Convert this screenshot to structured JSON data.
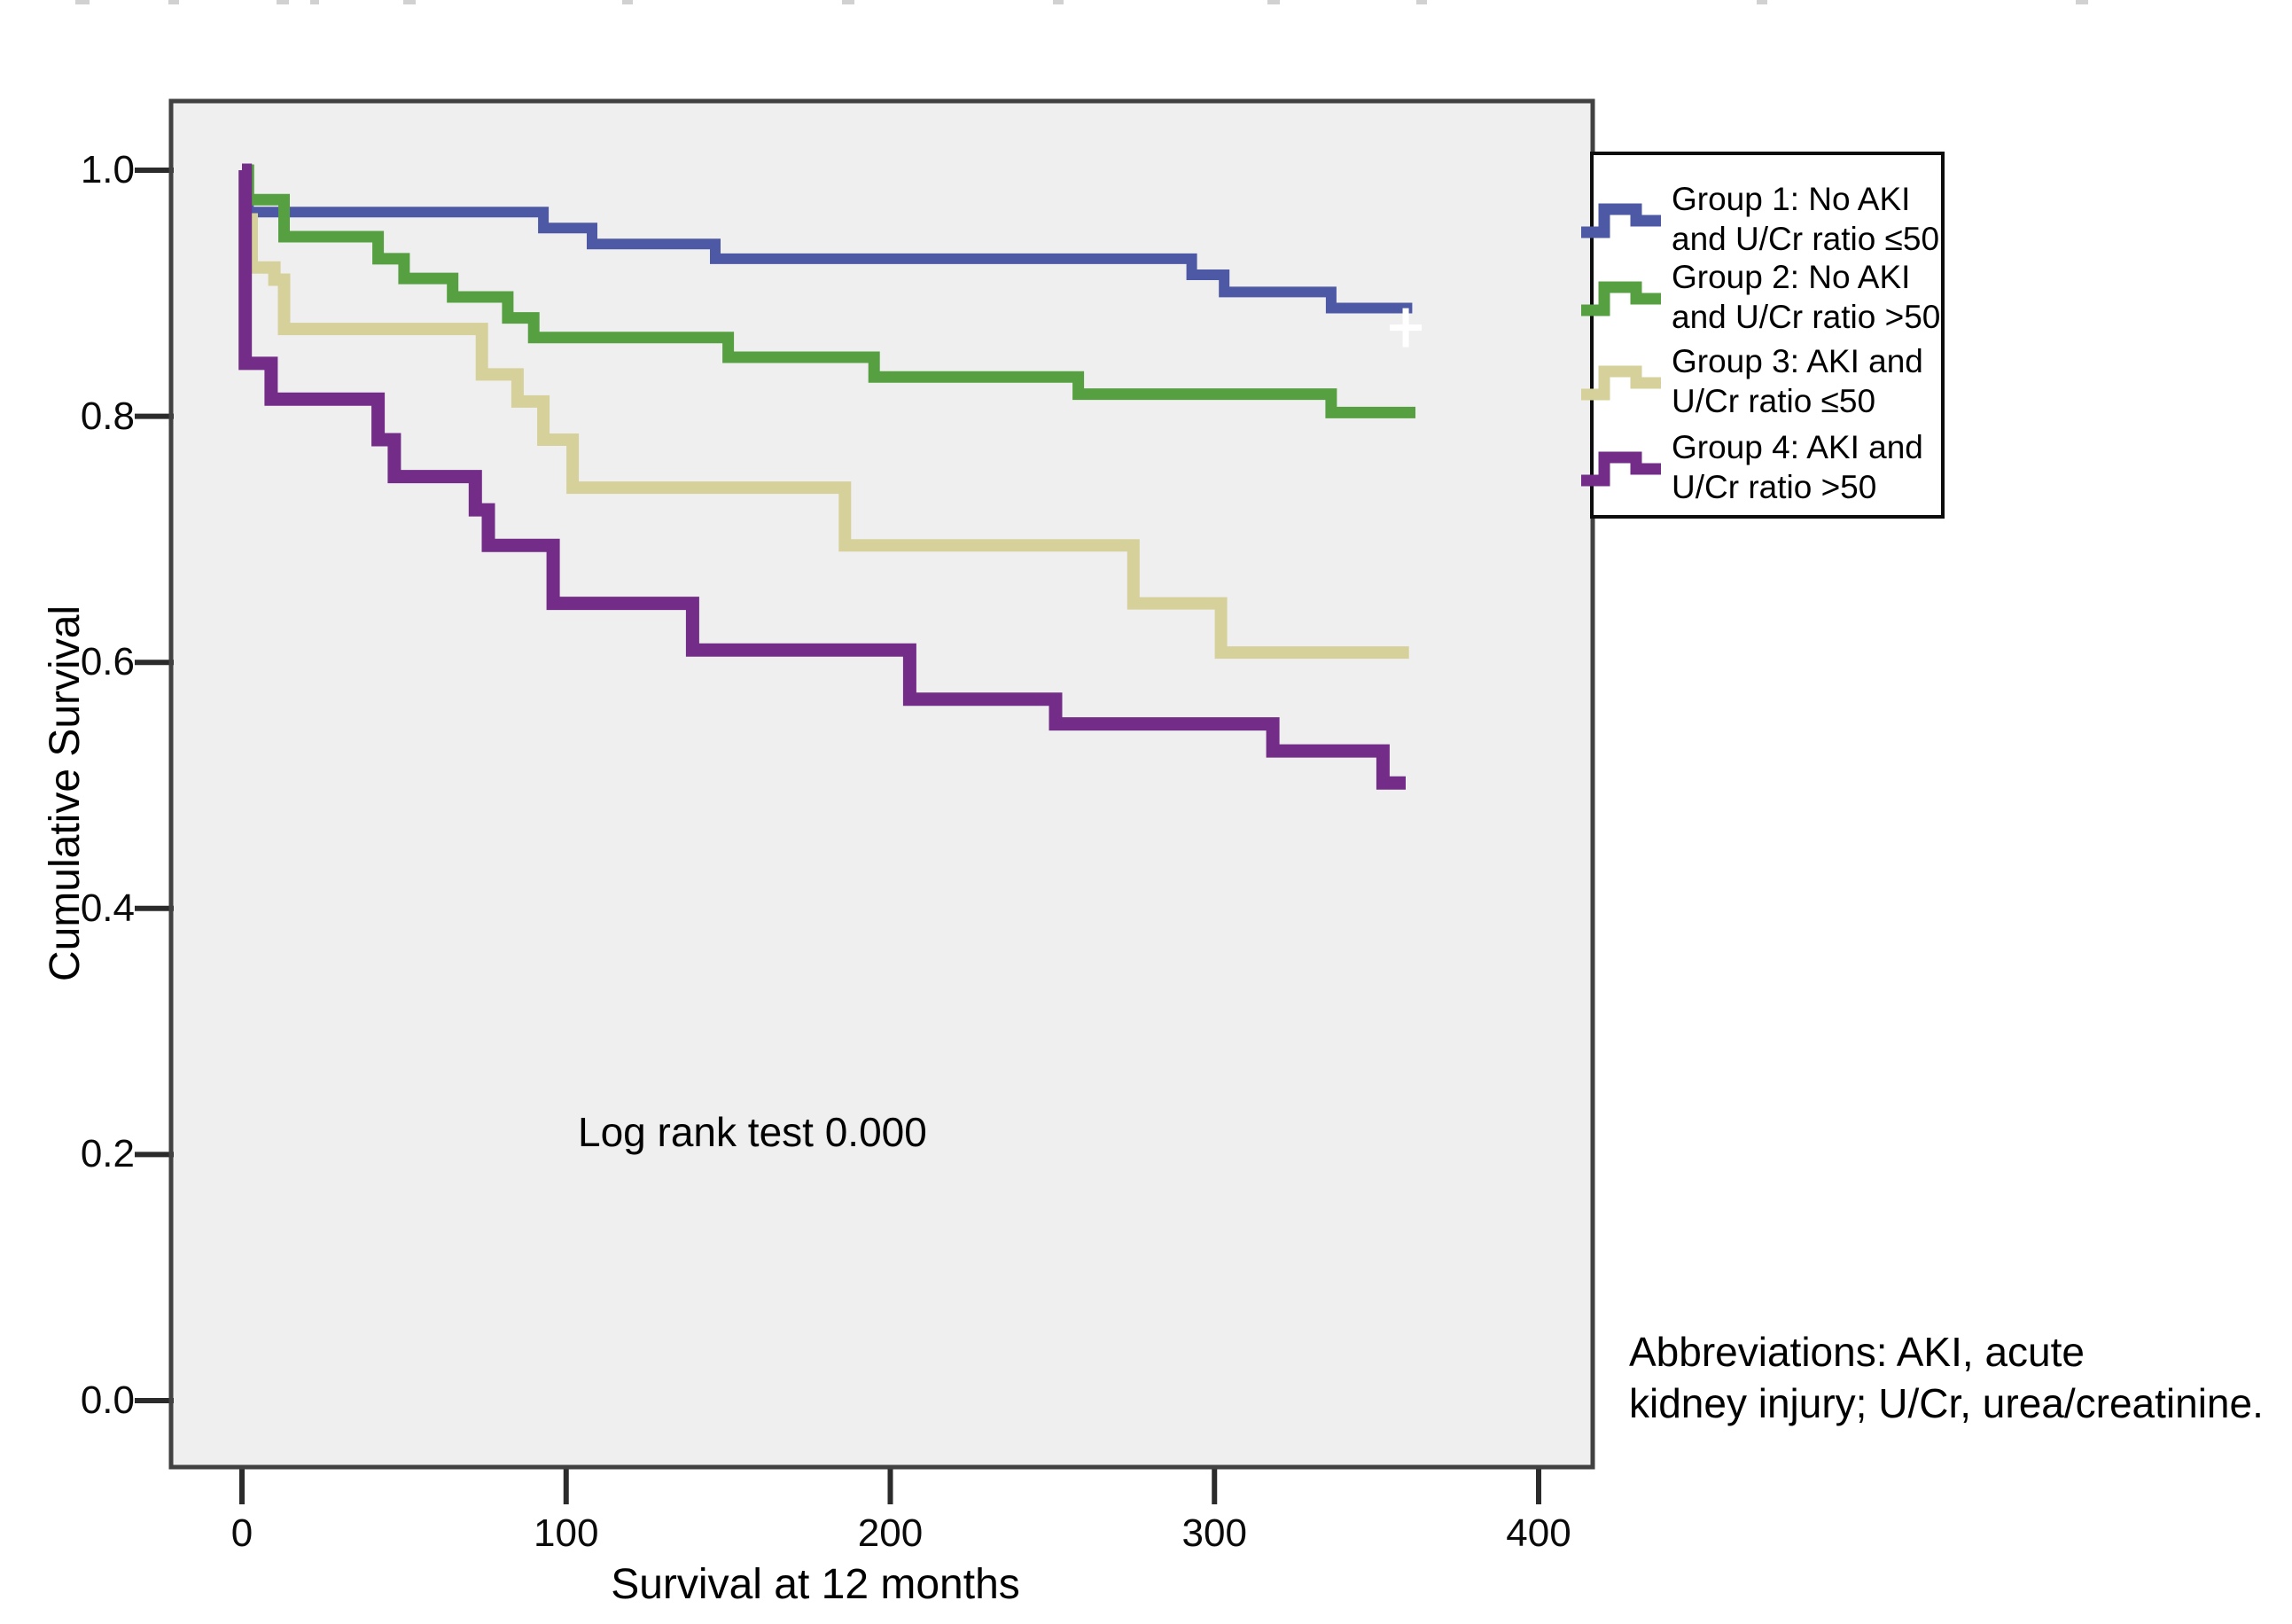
{
  "figure": {
    "annotation": "Log rank test 0.000",
    "abbreviations_line1": "Abbreviations: AKI, acute",
    "abbreviations_line2": "kidney injury; U/Cr, urea/creatinine."
  },
  "axes": {
    "x_label": "Survival at 12 months",
    "y_label": "Cumulative Survival",
    "x_tick_labels": [
      "0",
      "100",
      "200",
      "300",
      "400"
    ],
    "y_tick_labels": [
      "1.0",
      "0.8",
      "0.6",
      "0.4",
      "0.2",
      "0.0"
    ]
  },
  "legend": {
    "items": [
      {
        "line1": "Group 1: No AKI",
        "line2": "and U/Cr ratio ≤50"
      },
      {
        "line1": "Group 2: No AKI",
        "line2": "and U/Cr ratio >50"
      },
      {
        "line1": "Group 3: AKI and",
        "line2": "U/Cr ratio ≤50"
      },
      {
        "line1": "Group 4: AKI and",
        "line2": "U/Cr ratio >50"
      }
    ]
  },
  "colors": {
    "plot_background": "#f0eff0",
    "plot_border": "#414141",
    "tick": "#2b2b2b",
    "censor_mark": "#ffffff"
  },
  "chart_data": {
    "type": "line",
    "subtype": "kaplan-meier-step",
    "title": "",
    "xlabel": "Survival at 12 months",
    "ylabel": "Cumulative Survival",
    "xlim": [
      -22,
      422
    ],
    "ylim": [
      -0.04,
      1.06
    ],
    "x_tick_values": [
      0,
      100,
      200,
      300,
      400
    ],
    "y_tick_values": [
      1.0,
      0.8,
      0.6,
      0.4,
      0.2,
      0.0
    ],
    "grid": false,
    "legend_position": "upper-right-outside",
    "annotation": "Log rank test 0.000",
    "series": [
      {
        "name": "Group 1: No AKI and U/Cr ratio ≤50",
        "color": "#4d59a5",
        "line_width": 12,
        "step_points": [
          [
            0,
            1.0
          ],
          [
            2,
            0.966
          ],
          [
            93,
            0.953
          ],
          [
            108,
            0.94
          ],
          [
            146,
            0.928
          ],
          [
            293,
            0.915
          ],
          [
            303,
            0.901
          ],
          [
            336,
            0.888
          ]
        ],
        "end_x": 361,
        "censor_marks": [
          [
            359,
            0.872
          ]
        ]
      },
      {
        "name": "Group 2: No AKI and U/Cr ratio >50",
        "color": "#56a042",
        "line_width": 13,
        "step_points": [
          [
            0,
            1.0
          ],
          [
            2,
            0.976
          ],
          [
            13,
            0.946
          ],
          [
            42,
            0.928
          ],
          [
            50,
            0.912
          ],
          [
            65,
            0.897
          ],
          [
            82,
            0.88
          ],
          [
            90,
            0.864
          ],
          [
            150,
            0.848
          ],
          [
            195,
            0.832
          ],
          [
            258,
            0.818
          ],
          [
            336,
            0.803
          ]
        ],
        "end_x": 362,
        "censor_marks": []
      },
      {
        "name": "Group 3: AKI and U/Cr ratio ≤50",
        "color": "#d6d19a",
        "line_width": 14,
        "step_points": [
          [
            0,
            1.0
          ],
          [
            1,
            0.96
          ],
          [
            3,
            0.921
          ],
          [
            10,
            0.911
          ],
          [
            13,
            0.871
          ],
          [
            74,
            0.834
          ],
          [
            85,
            0.812
          ],
          [
            93,
            0.781
          ],
          [
            102,
            0.742
          ],
          [
            186,
            0.695
          ],
          [
            275,
            0.648
          ],
          [
            302,
            0.608
          ]
        ],
        "end_x": 360,
        "censor_marks": []
      },
      {
        "name": "Group 4: AKI and U/Cr ratio >50",
        "color": "#732c87",
        "line_width": 15,
        "step_points": [
          [
            0,
            1.0
          ],
          [
            1,
            0.843
          ],
          [
            9,
            0.814
          ],
          [
            42,
            0.781
          ],
          [
            47,
            0.751
          ],
          [
            72,
            0.724
          ],
          [
            76,
            0.695
          ],
          [
            96,
            0.648
          ],
          [
            139,
            0.61
          ],
          [
            206,
            0.57
          ],
          [
            251,
            0.55
          ],
          [
            318,
            0.528
          ],
          [
            352,
            0.502
          ]
        ],
        "end_x": 359,
        "censor_marks": []
      }
    ]
  }
}
